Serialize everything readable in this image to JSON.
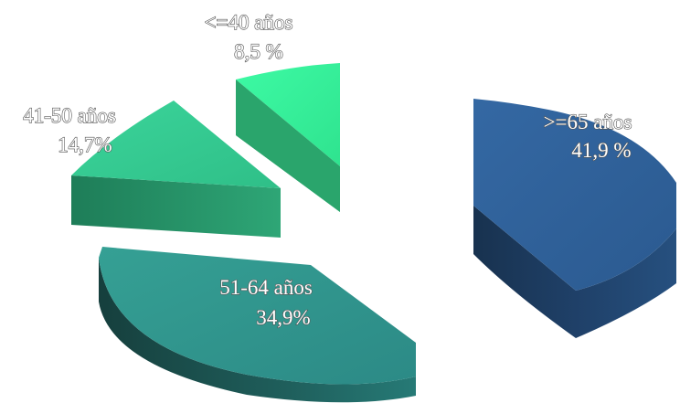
{
  "chart_data": {
    "type": "pie",
    "style": "3d-exploded",
    "title": "",
    "slices": [
      {
        "label": "<=40 años",
        "value_label": "8,5 %",
        "value": 8.5,
        "color": "#35f29a"
      },
      {
        "label": "41-50 años",
        "value_label": "14,7%",
        "value": 14.7,
        "color": "#34c98f"
      },
      {
        "label": "51-64 años",
        "value_label": "34,9%",
        "value": 34.9,
        "color": "#2f938c"
      },
      {
        "label": ">=65 años",
        "value_label": "41,9 %",
        "value": 41.9,
        "color": "#2f5f97"
      }
    ]
  }
}
